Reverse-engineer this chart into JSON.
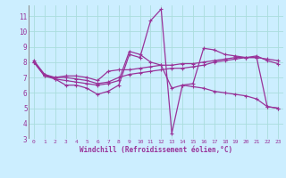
{
  "xlabel": "Windchill (Refroidissement éolien,°C)",
  "bg_color": "#cceeff",
  "line_color": "#993399",
  "grid_color": "#aadddd",
  "xlim": [
    -0.5,
    23.5
  ],
  "ylim": [
    3,
    11.7
  ],
  "yticks": [
    3,
    4,
    5,
    6,
    7,
    8,
    9,
    10,
    11
  ],
  "xticks": [
    0,
    1,
    2,
    3,
    4,
    5,
    6,
    7,
    8,
    9,
    10,
    11,
    12,
    13,
    14,
    15,
    16,
    17,
    18,
    19,
    20,
    21,
    22,
    23
  ],
  "line1_y": [
    8.1,
    7.2,
    6.9,
    6.5,
    6.5,
    6.3,
    5.9,
    6.1,
    6.5,
    8.5,
    8.3,
    10.7,
    11.45,
    3.35,
    6.5,
    6.4,
    6.3,
    6.1,
    6.0,
    5.9,
    5.8,
    5.6,
    5.1,
    5.0
  ],
  "line2_y": [
    8.0,
    7.2,
    7.0,
    7.1,
    7.1,
    7.0,
    6.8,
    7.4,
    7.5,
    7.5,
    7.6,
    7.7,
    7.8,
    7.8,
    7.9,
    7.9,
    8.0,
    8.1,
    8.2,
    8.3,
    8.3,
    8.3,
    8.2,
    8.1
  ],
  "line3_y": [
    8.0,
    7.1,
    7.0,
    7.0,
    6.9,
    6.8,
    6.6,
    6.7,
    7.0,
    7.2,
    7.3,
    7.4,
    7.5,
    7.6,
    7.6,
    7.7,
    7.8,
    8.0,
    8.1,
    8.2,
    8.3,
    8.4,
    8.1,
    7.9
  ],
  "line4_y": [
    8.0,
    7.1,
    6.9,
    6.8,
    6.7,
    6.6,
    6.5,
    6.6,
    6.8,
    8.7,
    8.5,
    8.0,
    7.8,
    6.3,
    6.5,
    6.6,
    8.9,
    8.8,
    8.5,
    8.4,
    8.3,
    8.3,
    5.1,
    5.0
  ]
}
